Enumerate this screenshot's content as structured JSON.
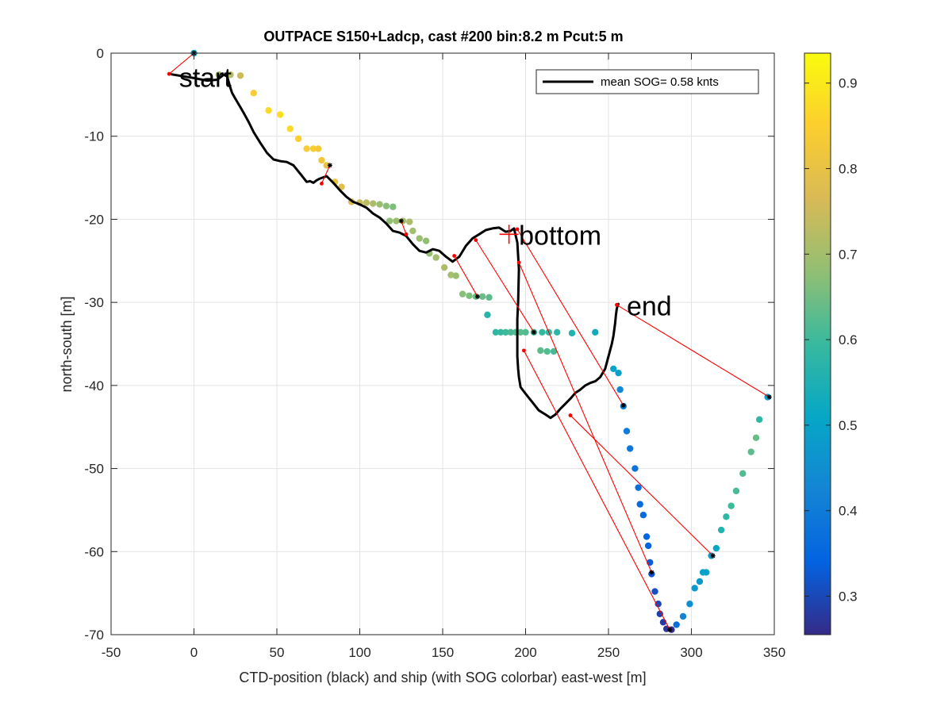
{
  "chart_data": {
    "type": "scatter",
    "title": "OUTPACE S150+Ladcp, cast #200 bin:8.2 m  Pcut:5 m",
    "xlabel": "CTD-position (black) and ship (with SOG colorbar) east-west [m]",
    "ylabel": "north-south [m]",
    "xlim": [
      -50,
      350
    ],
    "ylim": [
      -70,
      0
    ],
    "xticks": [
      -50,
      0,
      50,
      100,
      150,
      200,
      250,
      300,
      350
    ],
    "yticks": [
      0,
      -10,
      -20,
      -30,
      -40,
      -50,
      -60,
      -70
    ],
    "grid": true,
    "legend": {
      "placement": "top-right",
      "label": "mean SOG=  0.58 knts"
    },
    "annotations": [
      {
        "text": "start",
        "x": -9,
        "y": -3
      },
      {
        "text": "bottom",
        "x": 196,
        "y": -22
      },
      {
        "text": "end",
        "x": 261,
        "y": -30.5
      }
    ],
    "colorbar": {
      "range": [
        0.255,
        0.935
      ],
      "ticks": [
        0.3,
        0.4,
        0.5,
        0.6,
        0.7,
        0.8,
        0.9
      ],
      "colormap": [
        "#352a87",
        "#0363e1",
        "#1485d4",
        "#06a7c6",
        "#38b99e",
        "#92bf73",
        "#d9ba56",
        "#fcce2e",
        "#f9fb0e"
      ]
    },
    "series": [
      {
        "name": "CTD-position",
        "color": "#000000",
        "x": [
          -15,
          0,
          8,
          14,
          18,
          20,
          21,
          22,
          23,
          25,
          28,
          30,
          33,
          36,
          40,
          44,
          48,
          52,
          56,
          60,
          64,
          68,
          70,
          72,
          74,
          76,
          80,
          84,
          88,
          92,
          96,
          100,
          104,
          108,
          112,
          116,
          120,
          124,
          128,
          132,
          136,
          140,
          144,
          148,
          152,
          156,
          160,
          164,
          168,
          172,
          176,
          180,
          184,
          188,
          191,
          193,
          195,
          196,
          195.5,
          195,
          195,
          195,
          195.5,
          196,
          197,
          200,
          204,
          208,
          212,
          215,
          218,
          221,
          224,
          227,
          230,
          233,
          236,
          239,
          242,
          245,
          248,
          250,
          252,
          253,
          254,
          254.5,
          255,
          255.5,
          256
        ],
        "y": [
          -2.5,
          -3,
          -3.3,
          -3.2,
          -2.6,
          -2.8,
          -3.5,
          -4.2,
          -4.8,
          -5.5,
          -6.5,
          -7.2,
          -8.3,
          -9.5,
          -10.8,
          -12,
          -12.8,
          -13,
          -13.1,
          -13.5,
          -14.5,
          -15.5,
          -15.4,
          -15.6,
          -15.3,
          -15.1,
          -14.8,
          -15.6,
          -16.5,
          -17.3,
          -17.9,
          -18.2,
          -18.6,
          -19.3,
          -19.8,
          -20.5,
          -21.4,
          -21.6,
          -22,
          -23,
          -23.8,
          -24,
          -23.6,
          -23.8,
          -24.5,
          -25.1,
          -24.5,
          -23.2,
          -22.3,
          -21.8,
          -21.3,
          -21.1,
          -21,
          -21.5,
          -21.4,
          -21.1,
          -22.8,
          -26,
          -30,
          -32,
          -34,
          -36.5,
          -38,
          -39,
          -40.2,
          -41,
          -42,
          -43,
          -43.5,
          -43.9,
          -43.5,
          -42.8,
          -42.2,
          -41.6,
          -40.9,
          -40.5,
          -40,
          -39.7,
          -39.5,
          -39,
          -38,
          -36.5,
          -35,
          -34,
          -32.5,
          -31.5,
          -30.8,
          -30.4,
          -30.2
        ]
      },
      {
        "name": "ship",
        "points": [
          [
            0,
            0,
            0.5
          ],
          [
            15,
            -2.6,
            0.7
          ],
          [
            22,
            -2.6,
            0.72
          ],
          [
            28,
            -2.7,
            0.75
          ],
          [
            36,
            -4.8,
            0.84
          ],
          [
            45,
            -6.9,
            0.87
          ],
          [
            52,
            -7.4,
            0.88
          ],
          [
            58,
            -9.1,
            0.87
          ],
          [
            63,
            -10.3,
            0.85
          ],
          [
            68,
            -11.5,
            0.84
          ],
          [
            72,
            -11.5,
            0.84
          ],
          [
            75,
            -11.5,
            0.83
          ],
          [
            77,
            -12.9,
            0.82
          ],
          [
            80,
            -13.5,
            0.8
          ],
          [
            85,
            -15.5,
            0.81
          ],
          [
            89,
            -16.1,
            0.79
          ],
          [
            95,
            -17.9,
            0.77
          ],
          [
            100,
            -18,
            0.74
          ],
          [
            104,
            -18,
            0.73
          ],
          [
            108,
            -18.1,
            0.71
          ],
          [
            112,
            -18.2,
            0.69
          ],
          [
            116,
            -18.4,
            0.67
          ],
          [
            120,
            -18.5,
            0.66
          ],
          [
            118,
            -20.2,
            0.68
          ],
          [
            122,
            -20.2,
            0.69
          ],
          [
            126,
            -20.2,
            0.7
          ],
          [
            130,
            -20.3,
            0.71
          ],
          [
            132,
            -21.4,
            0.7
          ],
          [
            136,
            -22.3,
            0.69
          ],
          [
            140,
            -22.6,
            0.68
          ],
          [
            142,
            -24.1,
            0.69
          ],
          [
            146,
            -24.6,
            0.7
          ],
          [
            151,
            -25.8,
            0.71
          ],
          [
            155,
            -26.7,
            0.7
          ],
          [
            158,
            -26.8,
            0.69
          ],
          [
            162,
            -29,
            0.67
          ],
          [
            166,
            -29.2,
            0.66
          ],
          [
            170,
            -29.3,
            0.65
          ],
          [
            174,
            -29.3,
            0.64
          ],
          [
            178,
            -29.4,
            0.63
          ],
          [
            177,
            -31.5,
            0.57
          ],
          [
            182,
            -33.6,
            0.58
          ],
          [
            185,
            -33.6,
            0.59
          ],
          [
            188,
            -33.6,
            0.6
          ],
          [
            191,
            -33.6,
            0.61
          ],
          [
            194,
            -33.6,
            0.62
          ],
          [
            197,
            -33.6,
            0.63
          ],
          [
            200,
            -33.6,
            0.62
          ],
          [
            205,
            -33.6,
            0.6
          ],
          [
            210,
            -33.6,
            0.59
          ],
          [
            214,
            -33.6,
            0.59
          ],
          [
            219,
            -33.6,
            0.58
          ],
          [
            228,
            -33.7,
            0.56
          ],
          [
            242,
            -33.6,
            0.53
          ],
          [
            209,
            -35.8,
            0.63
          ],
          [
            213,
            -35.9,
            0.62
          ],
          [
            217,
            -35.9,
            0.61
          ],
          [
            253,
            -38,
            0.5
          ],
          [
            256,
            -38.5,
            0.49
          ],
          [
            257,
            -40.5,
            0.43
          ],
          [
            259,
            -42.5,
            0.42
          ],
          [
            261,
            -45.5,
            0.4
          ],
          [
            263,
            -47.6,
            0.39
          ],
          [
            266,
            -50,
            0.38
          ],
          [
            268,
            -52.3,
            0.37
          ],
          [
            269,
            -54.3,
            0.36
          ],
          [
            271,
            -55.6,
            0.36
          ],
          [
            273,
            -58.2,
            0.35
          ],
          [
            274,
            -59.3,
            0.34
          ],
          [
            275,
            -61.3,
            0.33
          ],
          [
            276,
            -62.7,
            0.32
          ],
          [
            278,
            -64.8,
            0.31
          ],
          [
            280,
            -66.3,
            0.3
          ],
          [
            281,
            -67.5,
            0.29
          ],
          [
            283,
            -68.5,
            0.28
          ],
          [
            285,
            -69.3,
            0.27
          ],
          [
            288,
            -69.4,
            0.26
          ],
          [
            291,
            -68.8,
            0.37
          ],
          [
            295,
            -67.8,
            0.42
          ],
          [
            299,
            -66.3,
            0.45
          ],
          [
            302,
            -64.4,
            0.47
          ],
          [
            305,
            -63.6,
            0.48
          ],
          [
            307,
            -62.5,
            0.49
          ],
          [
            309,
            -62.5,
            0.5
          ],
          [
            312,
            -60.5,
            0.5
          ],
          [
            315,
            -59.6,
            0.51
          ],
          [
            318,
            -57.4,
            0.56
          ],
          [
            321,
            -55.8,
            0.58
          ],
          [
            324,
            -54.5,
            0.6
          ],
          [
            327,
            -52.7,
            0.61
          ],
          [
            331,
            -50.6,
            0.62
          ],
          [
            336,
            -48,
            0.63
          ],
          [
            339,
            -46.3,
            0.64
          ],
          [
            341,
            -44.1,
            0.58
          ],
          [
            346,
            -41.4,
            0.49
          ]
        ]
      }
    ],
    "connectors": [
      [
        [
          -15,
          -2.5
        ],
        [
          0,
          0
        ]
      ],
      [
        [
          77,
          -15.7
        ],
        [
          82,
          -13.5
        ]
      ],
      [
        [
          125,
          -20.2
        ],
        [
          128,
          -21.8
        ]
      ],
      [
        [
          157,
          -24.4
        ],
        [
          171,
          -29.3
        ]
      ],
      [
        [
          170,
          -22.5
        ],
        [
          205,
          -33.6
        ]
      ],
      [
        [
          195,
          -21.2
        ],
        [
          259,
          -42.4
        ]
      ],
      [
        [
          196,
          -25.2
        ],
        [
          276,
          -62.5
        ]
      ],
      [
        [
          199,
          -35.8
        ],
        [
          287,
          -69.4
        ]
      ],
      [
        [
          227,
          -43.6
        ],
        [
          313,
          -60.5
        ]
      ],
      [
        [
          255,
          -30.3
        ],
        [
          347,
          -41.4
        ]
      ]
    ],
    "ctd_markers": [
      [
        0,
        0
      ],
      [
        82,
        -13.5
      ],
      [
        125,
        -20.2
      ],
      [
        171,
        -29.3
      ],
      [
        205,
        -33.6
      ],
      [
        259,
        -42.4
      ],
      [
        276,
        -62.5
      ],
      [
        287,
        -69.4
      ],
      [
        313,
        -60.5
      ],
      [
        347,
        -41.4
      ]
    ],
    "red_points": [
      [
        -15,
        -2.5
      ],
      [
        77,
        -15.7
      ],
      [
        128,
        -21.8
      ],
      [
        157,
        -24.4
      ],
      [
        170,
        -22.5
      ],
      [
        195,
        -21.2
      ],
      [
        196,
        -25.2
      ],
      [
        199,
        -35.8
      ],
      [
        227,
        -43.6
      ],
      [
        255,
        -30.3
      ]
    ],
    "bottom_marker": [
      190,
      -21.8
    ]
  }
}
